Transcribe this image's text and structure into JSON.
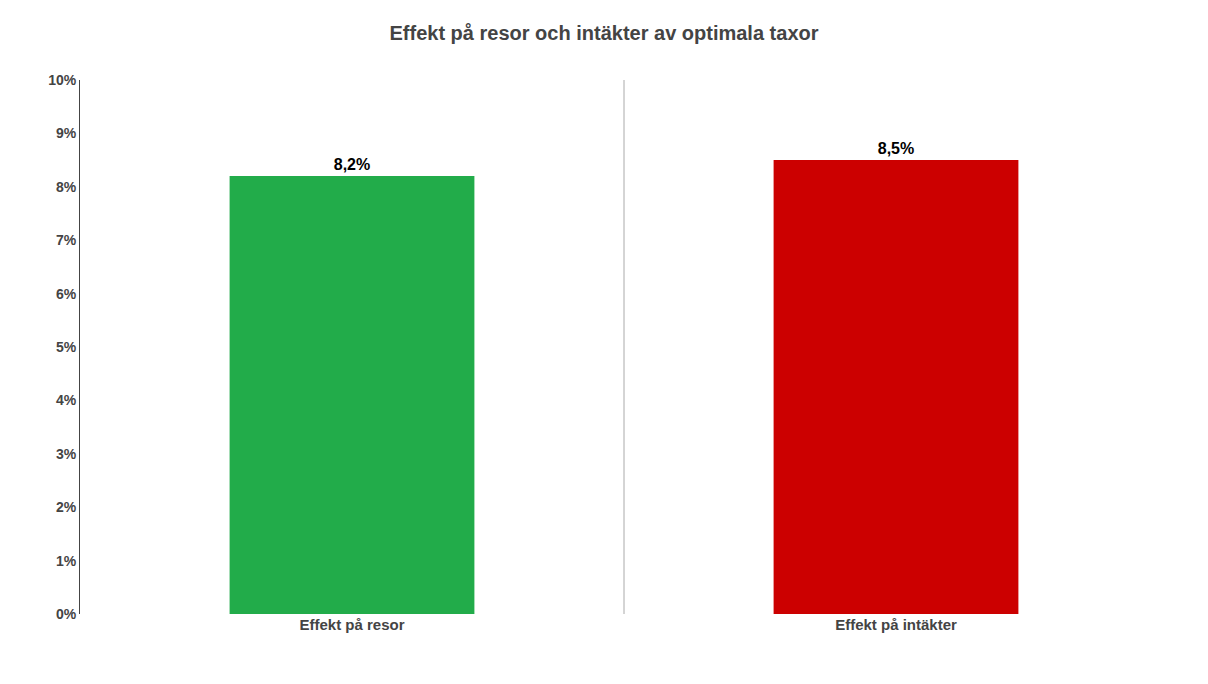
{
  "chart_data": {
    "type": "bar",
    "title": "Effekt på resor och intäkter av optimala taxor",
    "categories": [
      "Effekt på resor",
      "Effekt på intäkter"
    ],
    "values": [
      0.082,
      0.085
    ],
    "value_labels": [
      "8,2%",
      "8,5%"
    ],
    "colors": [
      "#22ac4a",
      "#cc0000"
    ],
    "data_labels": true,
    "ylim": [
      0,
      0.1
    ],
    "yticks": [
      {
        "value": 0.0,
        "label": "0%"
      },
      {
        "value": 0.01,
        "label": "1%"
      },
      {
        "value": 0.02,
        "label": "2%"
      },
      {
        "value": 0.03,
        "label": "3%"
      },
      {
        "value": 0.04,
        "label": "4%"
      },
      {
        "value": 0.05,
        "label": "5%"
      },
      {
        "value": 0.06,
        "label": "6%"
      },
      {
        "value": 0.07,
        "label": "7%"
      },
      {
        "value": 0.08,
        "label": "8%"
      },
      {
        "value": 0.09,
        "label": "9%"
      },
      {
        "value": 0.1,
        "label": "10%"
      }
    ],
    "grid": false
  }
}
